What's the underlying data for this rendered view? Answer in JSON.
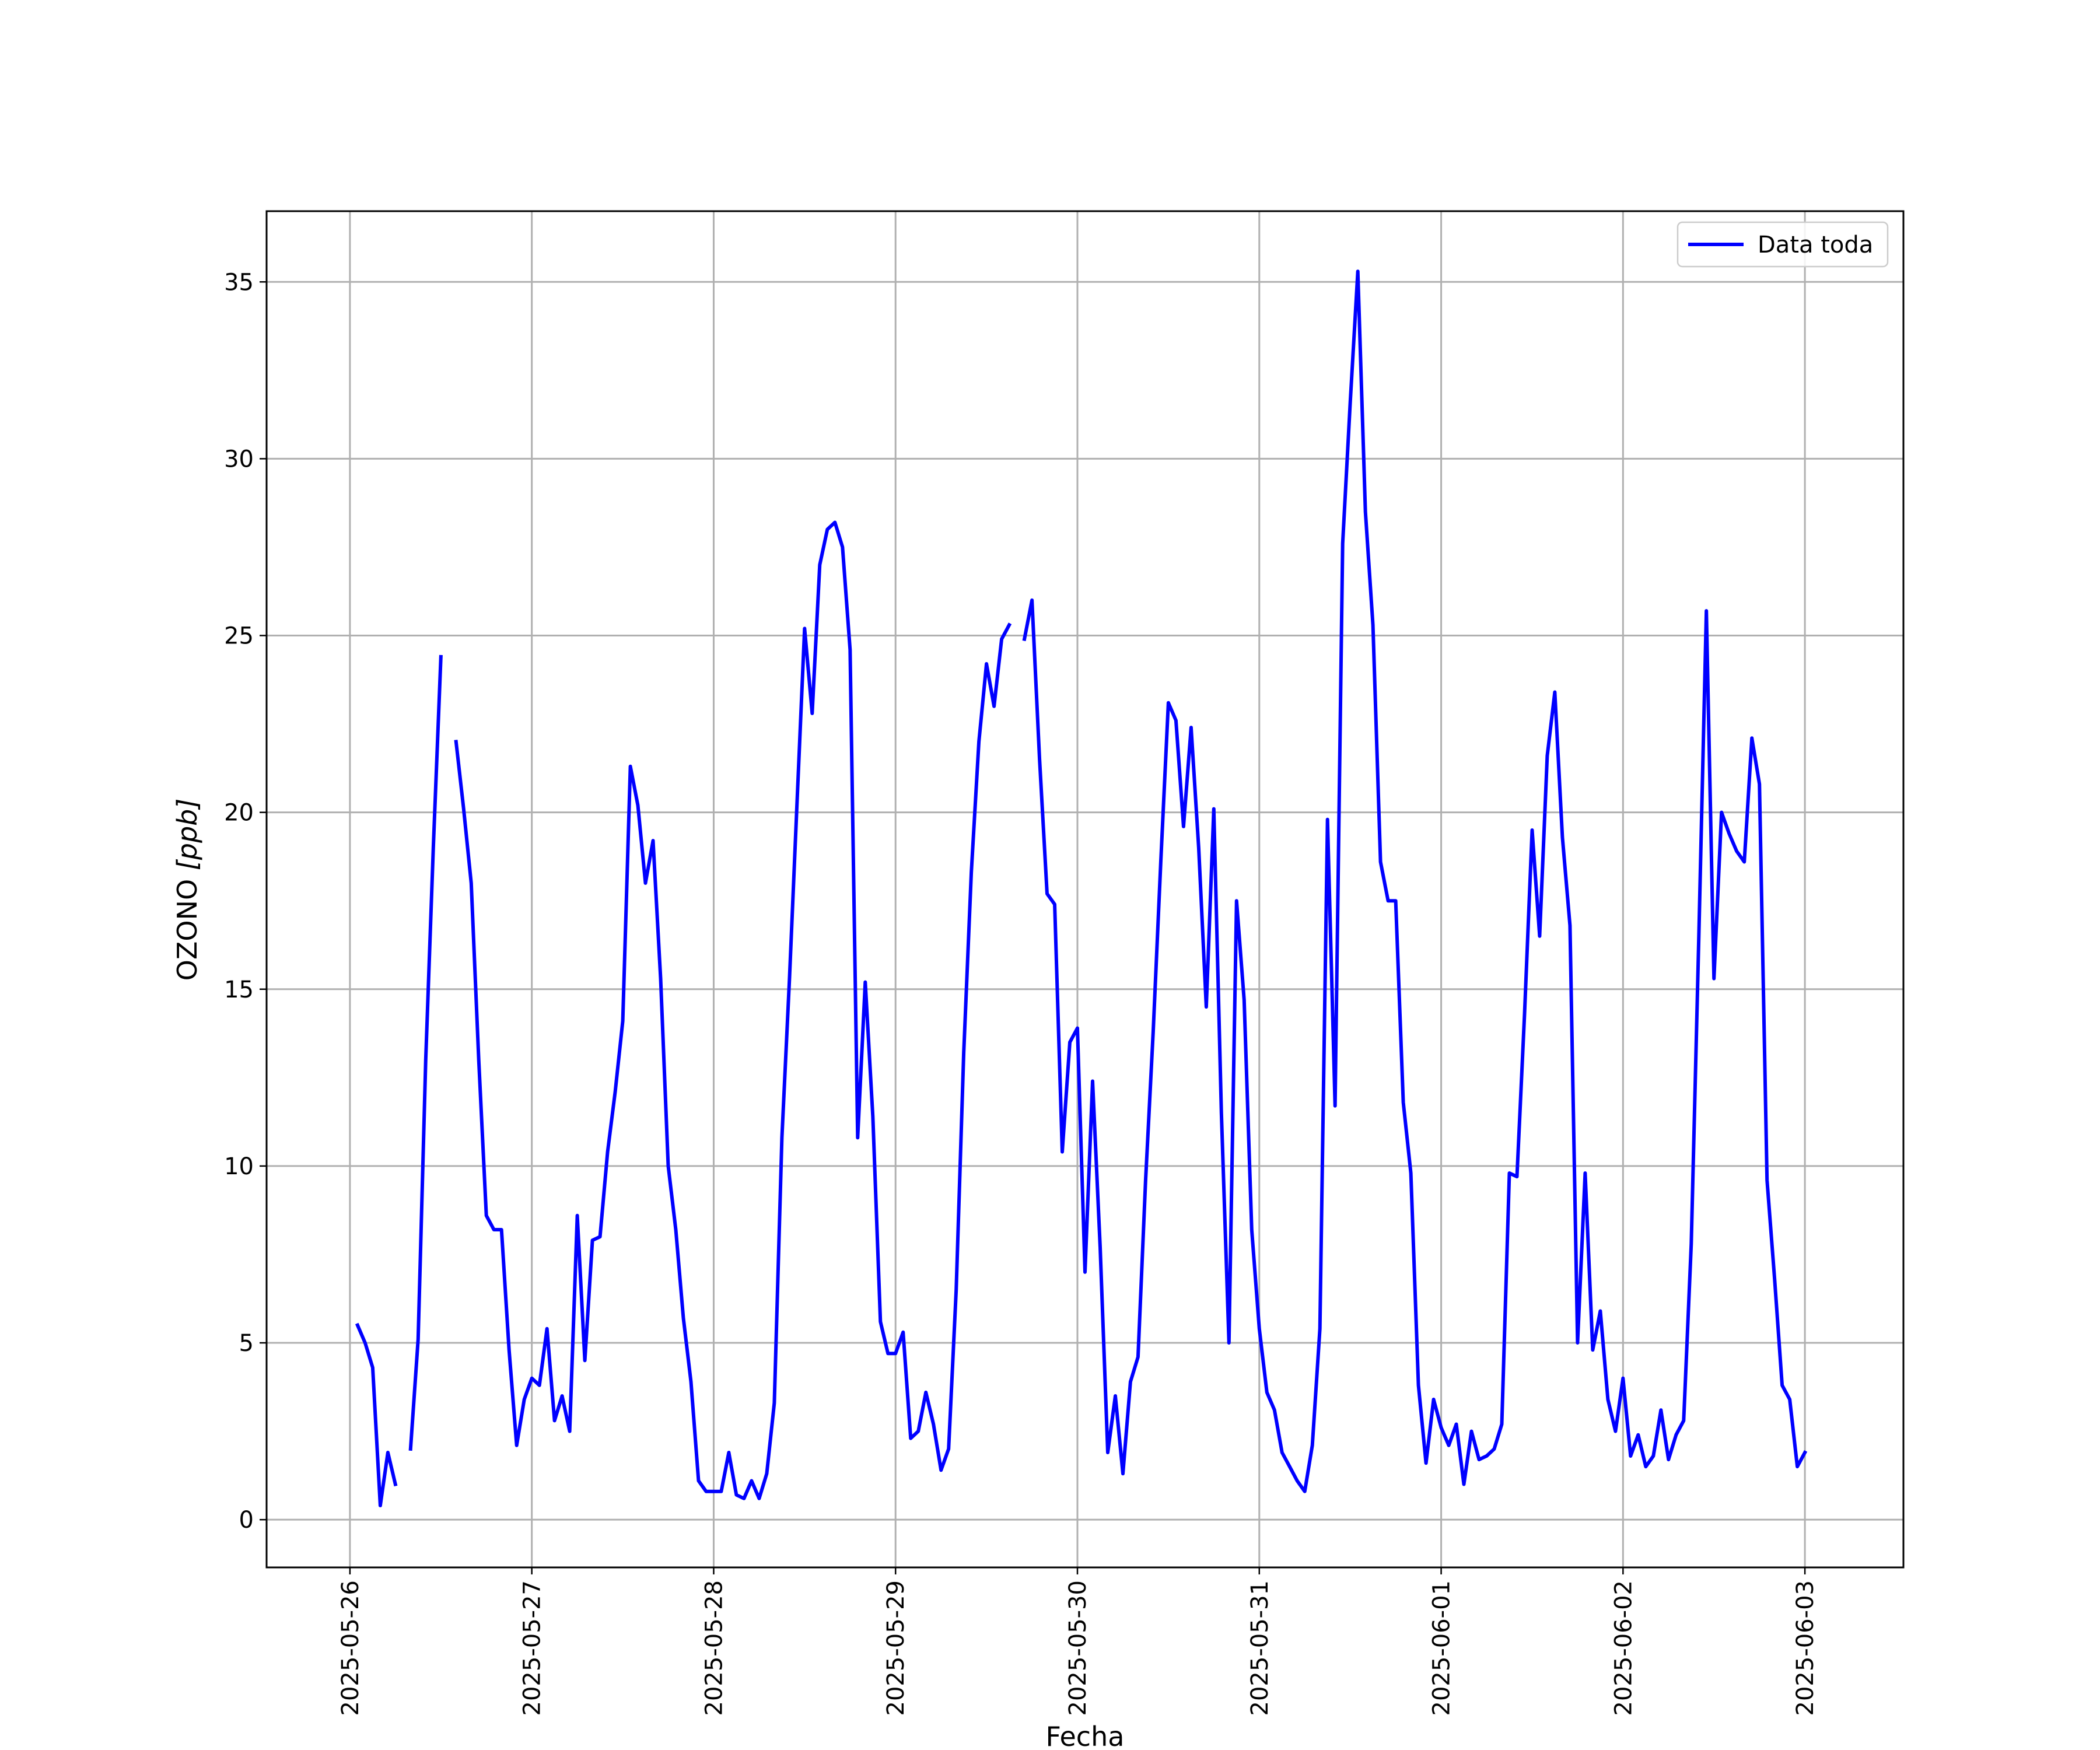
{
  "chart_data": {
    "type": "line",
    "title": "",
    "xlabel": "Fecha",
    "ylabel_main": "OZONO ",
    "ylabel_unit": "[ppb]",
    "x_type": "datetime",
    "xlim": [
      "2025-05-25T13:00",
      "2025-06-03T13:00"
    ],
    "ylim": [
      -1.35,
      37.0
    ],
    "yticks": [
      0,
      5,
      10,
      15,
      20,
      25,
      30,
      35
    ],
    "xticks": [
      "2025-05-26",
      "2025-05-27",
      "2025-05-28",
      "2025-05-29",
      "2025-05-30",
      "2025-05-31",
      "2025-06-01",
      "2025-06-02",
      "2025-06-03"
    ],
    "grid": true,
    "legend": "top-right",
    "series": [
      {
        "name": "Data toda",
        "color": "#0000ff",
        "points": [
          [
            "2025-05-26T01:00",
            5.5
          ],
          [
            "2025-05-26T02:00",
            5.0
          ],
          [
            "2025-05-26T03:00",
            4.3
          ],
          [
            "2025-05-26T04:00",
            0.4
          ],
          [
            "2025-05-26T05:00",
            1.9
          ],
          [
            "2025-05-26T06:00",
            1.0
          ],
          [
            "2025-05-26T07:00",
            null
          ],
          [
            "2025-05-26T08:00",
            2.0
          ],
          [
            "2025-05-26T09:00",
            5.1
          ],
          [
            "2025-05-26T10:00",
            13.0
          ],
          [
            "2025-05-26T11:00",
            19.0
          ],
          [
            "2025-05-26T12:00",
            24.4
          ],
          [
            "2025-05-26T13:00",
            null
          ],
          [
            "2025-05-26T14:00",
            22.0
          ],
          [
            "2025-05-26T15:00",
            20.1
          ],
          [
            "2025-05-26T16:00",
            18.0
          ],
          [
            "2025-05-26T17:00",
            13.0
          ],
          [
            "2025-05-26T18:00",
            8.6
          ],
          [
            "2025-05-26T19:00",
            8.2
          ],
          [
            "2025-05-26T20:00",
            8.2
          ],
          [
            "2025-05-26T21:00",
            4.8
          ],
          [
            "2025-05-26T22:00",
            2.1
          ],
          [
            "2025-05-26T23:00",
            3.4
          ],
          [
            "2025-05-27T00:00",
            4.0
          ],
          [
            "2025-05-27T01:00",
            3.8
          ],
          [
            "2025-05-27T02:00",
            5.4
          ],
          [
            "2025-05-27T03:00",
            2.8
          ],
          [
            "2025-05-27T04:00",
            3.5
          ],
          [
            "2025-05-27T05:00",
            2.5
          ],
          [
            "2025-05-27T06:00",
            8.6
          ],
          [
            "2025-05-27T07:00",
            4.5
          ],
          [
            "2025-05-27T08:00",
            7.9
          ],
          [
            "2025-05-27T09:00",
            8.0
          ],
          [
            "2025-05-27T10:00",
            10.4
          ],
          [
            "2025-05-27T11:00",
            12.1
          ],
          [
            "2025-05-27T12:00",
            14.1
          ],
          [
            "2025-05-27T13:00",
            21.3
          ],
          [
            "2025-05-27T14:00",
            20.2
          ],
          [
            "2025-05-27T15:00",
            18.0
          ],
          [
            "2025-05-27T16:00",
            19.2
          ],
          [
            "2025-05-27T17:00",
            15.3
          ],
          [
            "2025-05-27T18:00",
            10.0
          ],
          [
            "2025-05-27T19:00",
            8.2
          ],
          [
            "2025-05-27T20:00",
            5.7
          ],
          [
            "2025-05-27T21:00",
            3.9
          ],
          [
            "2025-05-27T22:00",
            1.1
          ],
          [
            "2025-05-27T23:00",
            0.8
          ],
          [
            "2025-05-28T00:00",
            0.8
          ],
          [
            "2025-05-28T01:00",
            0.8
          ],
          [
            "2025-05-28T02:00",
            1.9
          ],
          [
            "2025-05-28T03:00",
            0.7
          ],
          [
            "2025-05-28T04:00",
            0.6
          ],
          [
            "2025-05-28T05:00",
            1.1
          ],
          [
            "2025-05-28T06:00",
            0.6
          ],
          [
            "2025-05-28T07:00",
            1.3
          ],
          [
            "2025-05-28T08:00",
            3.3
          ],
          [
            "2025-05-28T09:00",
            10.8
          ],
          [
            "2025-05-28T10:00",
            15.3
          ],
          [
            "2025-05-28T11:00",
            20.3
          ],
          [
            "2025-05-28T12:00",
            25.2
          ],
          [
            "2025-05-28T13:00",
            22.8
          ],
          [
            "2025-05-28T14:00",
            27.0
          ],
          [
            "2025-05-28T15:00",
            28.0
          ],
          [
            "2025-05-28T16:00",
            28.2
          ],
          [
            "2025-05-28T17:00",
            27.5
          ],
          [
            "2025-05-28T18:00",
            24.6
          ],
          [
            "2025-05-28T19:00",
            10.8
          ],
          [
            "2025-05-28T20:00",
            15.2
          ],
          [
            "2025-05-28T21:00",
            11.4
          ],
          [
            "2025-05-28T22:00",
            5.6
          ],
          [
            "2025-05-28T23:00",
            4.7
          ],
          [
            "2025-05-29T00:00",
            4.7
          ],
          [
            "2025-05-29T01:00",
            5.3
          ],
          [
            "2025-05-29T02:00",
            2.3
          ],
          [
            "2025-05-29T03:00",
            2.5
          ],
          [
            "2025-05-29T04:00",
            3.6
          ],
          [
            "2025-05-29T05:00",
            2.7
          ],
          [
            "2025-05-29T06:00",
            1.4
          ],
          [
            "2025-05-29T07:00",
            2.0
          ],
          [
            "2025-05-29T08:00",
            6.5
          ],
          [
            "2025-05-29T09:00",
            13.2
          ],
          [
            "2025-05-29T10:00",
            18.3
          ],
          [
            "2025-05-29T11:00",
            22.0
          ],
          [
            "2025-05-29T12:00",
            24.2
          ],
          [
            "2025-05-29T13:00",
            23.0
          ],
          [
            "2025-05-29T14:00",
            24.9
          ],
          [
            "2025-05-29T15:00",
            25.3
          ],
          [
            "2025-05-29T16:00",
            null
          ],
          [
            "2025-05-29T17:00",
            24.9
          ],
          [
            "2025-05-29T18:00",
            26.0
          ],
          [
            "2025-05-29T19:00",
            21.5
          ],
          [
            "2025-05-29T20:00",
            17.7
          ],
          [
            "2025-05-29T21:00",
            17.4
          ],
          [
            "2025-05-29T22:00",
            10.4
          ],
          [
            "2025-05-29T23:00",
            13.5
          ],
          [
            "2025-05-30T00:00",
            13.9
          ],
          [
            "2025-05-30T01:00",
            7.0
          ],
          [
            "2025-05-30T02:00",
            12.4
          ],
          [
            "2025-05-30T03:00",
            7.7
          ],
          [
            "2025-05-30T04:00",
            1.9
          ],
          [
            "2025-05-30T05:00",
            3.5
          ],
          [
            "2025-05-30T06:00",
            1.3
          ],
          [
            "2025-05-30T07:00",
            3.9
          ],
          [
            "2025-05-30T08:00",
            4.6
          ],
          [
            "2025-05-30T09:00",
            9.6
          ],
          [
            "2025-05-30T10:00",
            13.8
          ],
          [
            "2025-05-30T11:00",
            18.6
          ],
          [
            "2025-05-30T12:00",
            23.1
          ],
          [
            "2025-05-30T13:00",
            22.6
          ],
          [
            "2025-05-30T14:00",
            19.6
          ],
          [
            "2025-05-30T15:00",
            22.4
          ],
          [
            "2025-05-30T16:00",
            19.0
          ],
          [
            "2025-05-30T17:00",
            14.5
          ],
          [
            "2025-05-30T18:00",
            20.1
          ],
          [
            "2025-05-30T19:00",
            11.5
          ],
          [
            "2025-05-30T20:00",
            5.0
          ],
          [
            "2025-05-30T21:00",
            17.5
          ],
          [
            "2025-05-30T22:00",
            14.7
          ],
          [
            "2025-05-30T23:00",
            8.2
          ],
          [
            "2025-05-31T00:00",
            5.4
          ],
          [
            "2025-05-31T01:00",
            3.6
          ],
          [
            "2025-05-31T02:00",
            3.1
          ],
          [
            "2025-05-31T03:00",
            1.9
          ],
          [
            "2025-05-31T04:00",
            1.5
          ],
          [
            "2025-05-31T05:00",
            1.1
          ],
          [
            "2025-05-31T06:00",
            0.8
          ],
          [
            "2025-05-31T07:00",
            2.1
          ],
          [
            "2025-05-31T08:00",
            5.4
          ],
          [
            "2025-05-31T09:00",
            19.8
          ],
          [
            "2025-05-31T10:00",
            11.7
          ],
          [
            "2025-05-31T11:00",
            27.6
          ],
          [
            "2025-05-31T12:00",
            31.6
          ],
          [
            "2025-05-31T13:00",
            35.3
          ],
          [
            "2025-05-31T14:00",
            28.5
          ],
          [
            "2025-05-31T15:00",
            25.3
          ],
          [
            "2025-05-31T16:00",
            18.6
          ],
          [
            "2025-05-31T17:00",
            17.5
          ],
          [
            "2025-05-31T18:00",
            17.5
          ],
          [
            "2025-05-31T19:00",
            11.8
          ],
          [
            "2025-05-31T20:00",
            9.8
          ],
          [
            "2025-05-31T21:00",
            3.8
          ],
          [
            "2025-05-31T22:00",
            1.6
          ],
          [
            "2025-05-31T23:00",
            3.4
          ],
          [
            "2025-06-01T00:00",
            2.6
          ],
          [
            "2025-06-01T01:00",
            2.1
          ],
          [
            "2025-06-01T02:00",
            2.7
          ],
          [
            "2025-06-01T03:00",
            1.0
          ],
          [
            "2025-06-01T04:00",
            2.5
          ],
          [
            "2025-06-01T05:00",
            1.7
          ],
          [
            "2025-06-01T06:00",
            1.8
          ],
          [
            "2025-06-01T07:00",
            2.0
          ],
          [
            "2025-06-01T08:00",
            2.7
          ],
          [
            "2025-06-01T09:00",
            9.8
          ],
          [
            "2025-06-01T10:00",
            9.7
          ],
          [
            "2025-06-01T11:00",
            14.3
          ],
          [
            "2025-06-01T12:00",
            19.5
          ],
          [
            "2025-06-01T13:00",
            16.5
          ],
          [
            "2025-06-01T14:00",
            21.6
          ],
          [
            "2025-06-01T15:00",
            23.4
          ],
          [
            "2025-06-01T16:00",
            19.3
          ],
          [
            "2025-06-01T17:00",
            16.8
          ],
          [
            "2025-06-01T18:00",
            5.0
          ],
          [
            "2025-06-01T19:00",
            9.8
          ],
          [
            "2025-06-01T20:00",
            4.8
          ],
          [
            "2025-06-01T21:00",
            5.9
          ],
          [
            "2025-06-01T22:00",
            3.4
          ],
          [
            "2025-06-01T23:00",
            2.5
          ],
          [
            "2025-06-02T00:00",
            4.0
          ],
          [
            "2025-06-02T01:00",
            1.8
          ],
          [
            "2025-06-02T02:00",
            2.4
          ],
          [
            "2025-06-02T03:00",
            1.5
          ],
          [
            "2025-06-02T04:00",
            1.8
          ],
          [
            "2025-06-02T05:00",
            3.1
          ],
          [
            "2025-06-02T06:00",
            1.7
          ],
          [
            "2025-06-02T07:00",
            2.4
          ],
          [
            "2025-06-02T08:00",
            2.8
          ],
          [
            "2025-06-02T09:00",
            7.8
          ],
          [
            "2025-06-02T10:00",
            16.5
          ],
          [
            "2025-06-02T11:00",
            25.7
          ],
          [
            "2025-06-02T12:00",
            15.3
          ],
          [
            "2025-06-02T13:00",
            20.0
          ],
          [
            "2025-06-02T14:00",
            19.4
          ],
          [
            "2025-06-02T15:00",
            18.9
          ],
          [
            "2025-06-02T16:00",
            18.6
          ],
          [
            "2025-06-02T17:00",
            22.1
          ],
          [
            "2025-06-02T18:00",
            20.8
          ],
          [
            "2025-06-02T19:00",
            9.6
          ],
          [
            "2025-06-02T20:00",
            6.8
          ],
          [
            "2025-06-02T21:00",
            3.8
          ],
          [
            "2025-06-02T22:00",
            3.4
          ],
          [
            "2025-06-02T23:00",
            1.5
          ],
          [
            "2025-06-03T00:00",
            1.9
          ]
        ]
      }
    ]
  }
}
